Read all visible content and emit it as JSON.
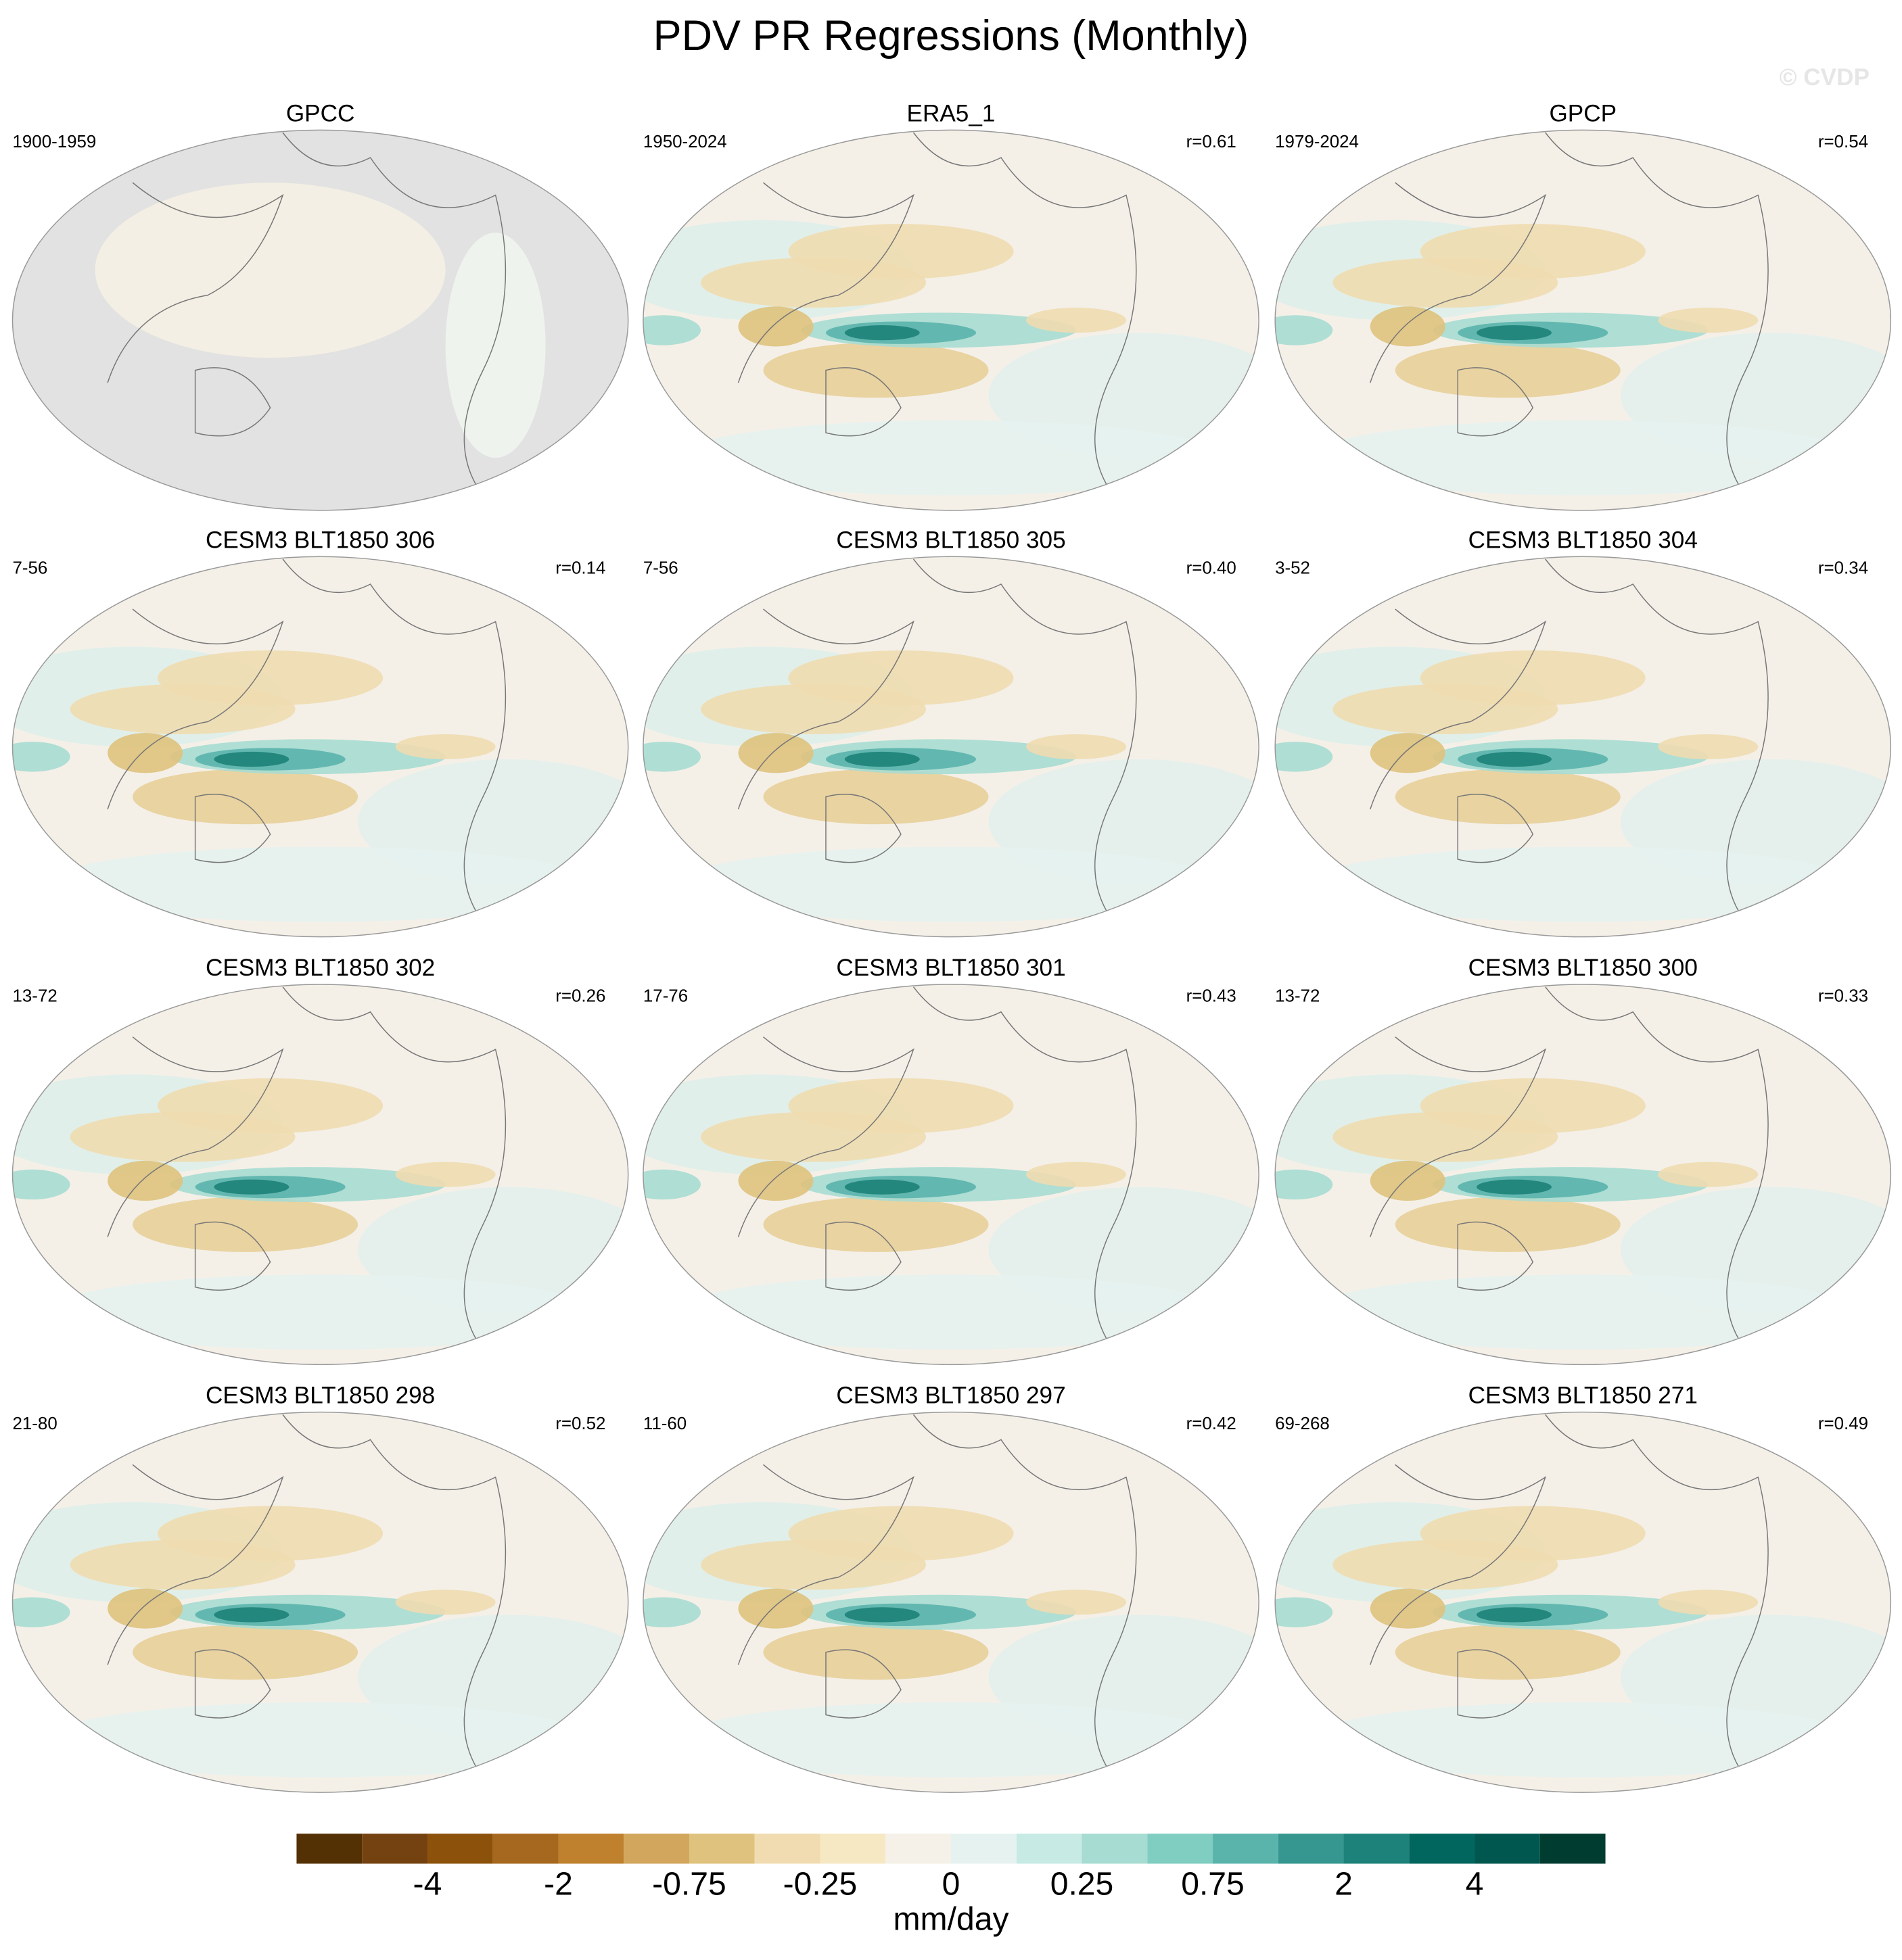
{
  "figure": {
    "title": "PDV PR Regressions (Monthly)",
    "watermark": "© CVDP",
    "panels": [
      {
        "title": "GPCC",
        "period": "1900-1959",
        "no_ocean_data": true
      },
      {
        "title": "ERA5_1",
        "period": "1950-2024",
        "r": "r=0.61"
      },
      {
        "title": "GPCP",
        "period": "1979-2024",
        "r": "r=0.54"
      },
      {
        "title": "CESM3 BLT1850 306",
        "period": "7-56",
        "r": "r=0.14"
      },
      {
        "title": "CESM3 BLT1850 305",
        "period": "7-56",
        "r": "r=0.40"
      },
      {
        "title": "CESM3 BLT1850 304",
        "period": "3-52",
        "r": "r=0.34"
      },
      {
        "title": "CESM3 BLT1850 302",
        "period": "13-72",
        "r": "r=0.26"
      },
      {
        "title": "CESM3 BLT1850 301",
        "period": "17-76",
        "r": "r=0.43"
      },
      {
        "title": "CESM3 BLT1850 300",
        "period": "13-72",
        "r": "r=0.33"
      },
      {
        "title": "CESM3 BLT1850 298",
        "period": "21-80",
        "r": "r=0.52"
      },
      {
        "title": "CESM3 BLT1850 297",
        "period": "11-60",
        "r": "r=0.42"
      },
      {
        "title": "CESM3 BLT1850 271",
        "period": "69-268",
        "r": "r=0.49"
      }
    ],
    "colorbar": {
      "unit": "mm/day",
      "ticks": [
        -4,
        -2,
        -0.75,
        -0.25,
        0,
        0.25,
        0.75,
        2,
        4
      ],
      "colors": [
        "#543005",
        "#744210",
        "#8c510a",
        "#a6671e",
        "#bf812d",
        "#d2a65c",
        "#dfc27d",
        "#f0dcb0",
        "#f6e8c3",
        "#f5f1e8",
        "#e6f2ef",
        "#c7eae5",
        "#a7dcd2",
        "#80cdc1",
        "#5ab4ac",
        "#35978f",
        "#1d8279",
        "#01665e",
        "#00574f",
        "#003c30"
      ]
    }
  }
}
